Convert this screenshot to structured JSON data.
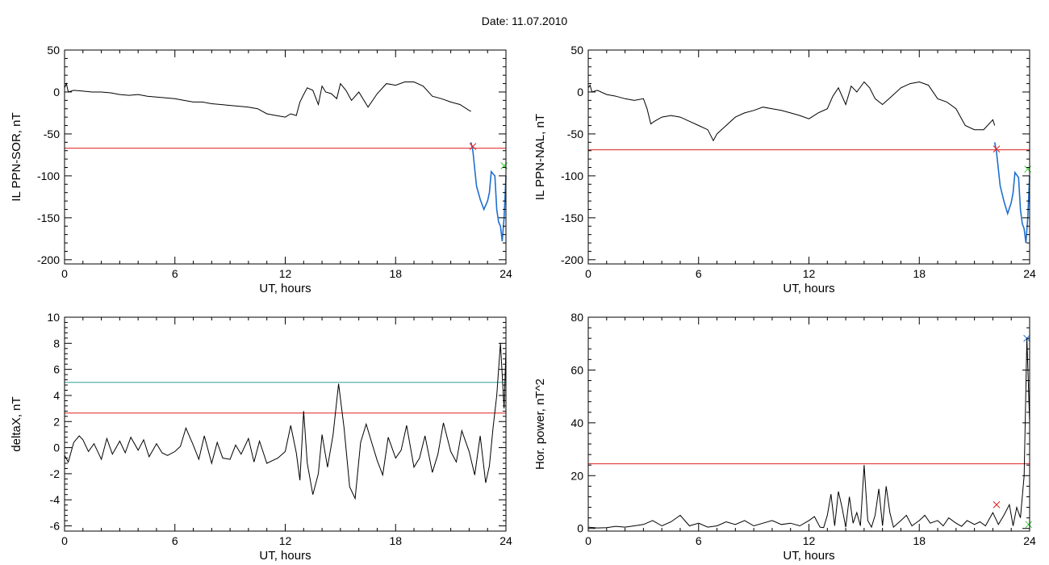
{
  "header": {
    "date_label": "Date:  11.07.2010"
  },
  "colors": {
    "threshold_red": "#e02020",
    "threshold_teal": "#2aa198",
    "series_black": "#000000",
    "series_blue": "#1f6fd0",
    "marker_green": "#33cc33"
  },
  "chart_data": [
    {
      "type": "line",
      "xlabel": "UT, hours",
      "ylabel": "IL PPN-SOR, nT",
      "xlim": [
        0,
        24
      ],
      "ylim": [
        -205,
        50
      ],
      "xticks": [
        0,
        6,
        12,
        18,
        24
      ],
      "yticks": [
        50,
        0,
        -50,
        -100,
        -150,
        -200
      ],
      "thresholds": [
        {
          "y": -67,
          "color": "#e02020"
        }
      ],
      "markers": [
        {
          "x": 22.2,
          "y": -65,
          "shape": "x",
          "color": "#e02020"
        },
        {
          "x": 23.9,
          "y": -88,
          "shape": "x",
          "color": "#33cc33"
        }
      ],
      "series": [
        {
          "color": "#000000",
          "x": [
            0,
            0.1,
            0.2,
            0.5,
            1,
            1.5,
            2,
            2.5,
            3,
            3.5,
            4,
            4.5,
            5,
            5.5,
            6,
            6.5,
            7,
            7.5,
            8,
            8.5,
            9,
            9.5,
            10,
            10.5,
            11,
            11.5,
            12,
            12.3,
            12.6,
            12.8,
            13,
            13.2,
            13.5,
            13.8,
            14,
            14.2,
            14.5,
            14.8,
            15,
            15.3,
            15.6,
            16,
            16.5,
            17,
            17.5,
            18,
            18.5,
            19,
            19.5,
            20,
            20.5,
            21,
            21.5,
            22,
            22.1
          ],
          "y": [
            5,
            10,
            0,
            2,
            1,
            0,
            0,
            -1,
            -3,
            -4,
            -3,
            -5,
            -6,
            -7,
            -8,
            -10,
            -12,
            -12,
            -14,
            -15,
            -16,
            -17,
            -18,
            -20,
            -26,
            -28,
            -30,
            -26,
            -28,
            -12,
            -3,
            5,
            2,
            -15,
            7,
            0,
            -2,
            -8,
            10,
            2,
            -10,
            0,
            -18,
            -2,
            10,
            8,
            12,
            12,
            7,
            -5,
            -8,
            -12,
            -15,
            -22,
            -23
          ]
        },
        {
          "color": "#1f6fd0",
          "x": [
            22.1,
            22.2,
            22.4,
            22.6,
            22.8,
            23.0,
            23.1,
            23.2,
            23.4,
            23.5,
            23.6,
            23.7,
            23.8,
            23.9,
            24.0
          ],
          "y": [
            -60,
            -70,
            -112,
            -128,
            -140,
            -130,
            -120,
            -95,
            -100,
            -140,
            -155,
            -160,
            -178,
            -150,
            -100
          ]
        }
      ]
    },
    {
      "type": "line",
      "xlabel": "UT, hours",
      "ylabel": "IL PPN-NAL, nT",
      "xlim": [
        0,
        24
      ],
      "ylim": [
        -205,
        50
      ],
      "xticks": [
        0,
        6,
        12,
        18,
        24
      ],
      "yticks": [
        50,
        0,
        -50,
        -100,
        -150,
        -200
      ],
      "thresholds": [
        {
          "y": -69,
          "color": "#e02020"
        }
      ],
      "markers": [
        {
          "x": 22.2,
          "y": -68,
          "shape": "x",
          "color": "#e02020"
        },
        {
          "x": 23.9,
          "y": -92,
          "shape": "x",
          "color": "#33cc33"
        }
      ],
      "series": [
        {
          "color": "#000000",
          "x": [
            0,
            0.1,
            0.2,
            0.5,
            1,
            1.5,
            2,
            2.5,
            3,
            3.2,
            3.4,
            3.6,
            4,
            4.5,
            5,
            5.5,
            6,
            6.5,
            6.8,
            7,
            7.5,
            8,
            8.5,
            9,
            9.5,
            10,
            10.5,
            11,
            11.5,
            12,
            12.5,
            13,
            13.3,
            13.6,
            14,
            14.3,
            14.6,
            15,
            15.3,
            15.6,
            16,
            16.5,
            17,
            17.5,
            18,
            18.5,
            19,
            19.5,
            20,
            20.5,
            21,
            21.5,
            22,
            22.1
          ],
          "y": [
            5,
            8,
            0,
            2,
            -3,
            -5,
            -8,
            -10,
            -8,
            -20,
            -38,
            -35,
            -30,
            -28,
            -30,
            -35,
            -40,
            -45,
            -58,
            -50,
            -40,
            -30,
            -25,
            -22,
            -18,
            -20,
            -22,
            -25,
            -28,
            -32,
            -25,
            -20,
            -5,
            5,
            -15,
            7,
            0,
            12,
            5,
            -8,
            -15,
            -5,
            5,
            10,
            12,
            8,
            -8,
            -12,
            -20,
            -40,
            -45,
            -45,
            -33,
            -40
          ]
        },
        {
          "color": "#1f6fd0",
          "x": [
            22.1,
            22.2,
            22.4,
            22.6,
            22.8,
            23.0,
            23.1,
            23.2,
            23.4,
            23.5,
            23.6,
            23.7,
            23.8,
            23.9,
            24.0
          ],
          "y": [
            -60,
            -72,
            -112,
            -130,
            -145,
            -132,
            -120,
            -96,
            -102,
            -140,
            -157,
            -163,
            -180,
            -150,
            -100
          ]
        }
      ]
    },
    {
      "type": "line",
      "xlabel": "UT, hours",
      "ylabel": "deltaX, nT",
      "xlim": [
        0,
        24
      ],
      "ylim": [
        -6.4,
        10
      ],
      "xticks": [
        0,
        6,
        12,
        18,
        24
      ],
      "yticks": [
        10,
        8,
        6,
        4,
        2,
        0,
        -2,
        -4,
        -6
      ],
      "thresholds": [
        {
          "y": 5,
          "color": "#2aa198"
        },
        {
          "y": 2.65,
          "color": "#e02020"
        }
      ],
      "markers": [],
      "series": [
        {
          "color": "#000000",
          "x": [
            0,
            0.2,
            0.5,
            0.8,
            1,
            1.3,
            1.6,
            2,
            2.3,
            2.6,
            3,
            3.3,
            3.6,
            4,
            4.3,
            4.6,
            5,
            5.3,
            5.6,
            6,
            6.3,
            6.6,
            7,
            7.3,
            7.6,
            8,
            8.3,
            8.6,
            9,
            9.3,
            9.6,
            10,
            10.3,
            10.6,
            11,
            11.3,
            11.6,
            12,
            12.3,
            12.6,
            12.8,
            13,
            13.2,
            13.5,
            13.8,
            14,
            14.3,
            14.6,
            14.9,
            15.2,
            15.5,
            15.8,
            16.1,
            16.4,
            16.7,
            17,
            17.3,
            17.6,
            18,
            18.3,
            18.6,
            19,
            19.3,
            19.6,
            20,
            20.3,
            20.6,
            21,
            21.3,
            21.6,
            22,
            22.3,
            22.6,
            22.9,
            23.1,
            23.3,
            23.5,
            23.7,
            23.9,
            24
          ],
          "y": [
            -0.6,
            -1.1,
            0.4,
            0.9,
            0.6,
            -0.3,
            0.3,
            -0.9,
            0.7,
            -0.5,
            0.5,
            -0.4,
            0.8,
            -0.2,
            0.6,
            -0.7,
            0.3,
            -0.4,
            -0.6,
            -0.3,
            0.1,
            1.5,
            0.2,
            -0.9,
            0.9,
            -1.2,
            0.4,
            -0.8,
            -0.9,
            0.2,
            -0.5,
            0.7,
            -1.1,
            0.5,
            -1.2,
            -1.0,
            -0.8,
            -0.3,
            1.7,
            -0.4,
            -2.5,
            2.8,
            -1.2,
            -3.6,
            -2.0,
            1.0,
            -1.5,
            1.0,
            4.9,
            1.5,
            -3.0,
            -3.9,
            0.4,
            1.8,
            0.4,
            -1.0,
            -2.1,
            0.8,
            -0.8,
            -0.2,
            1.7,
            -1.5,
            -0.8,
            0.9,
            -1.9,
            -0.5,
            1.9,
            -0.3,
            -1.1,
            1.3,
            -0.3,
            -2.1,
            0.9,
            -2.7,
            -1.4,
            1.5,
            4.0,
            8.0,
            3.0,
            7.5
          ]
        }
      ]
    },
    {
      "type": "line",
      "xlabel": "UT, hours",
      "ylabel": "Hor. power, nT^2",
      "xlim": [
        0,
        24
      ],
      "ylim": [
        -1,
        80
      ],
      "xticks": [
        0,
        6,
        12,
        18,
        24
      ],
      "yticks": [
        80,
        60,
        40,
        20,
        0
      ],
      "thresholds": [
        {
          "y": 24.5,
          "color": "#e02020"
        }
      ],
      "markers": [
        {
          "x": 22.2,
          "y": 9,
          "shape": "x",
          "color": "#e02020"
        },
        {
          "x": 23.85,
          "y": 72,
          "shape": "x",
          "color": "#1f6fd0"
        },
        {
          "x": 23.95,
          "y": 1.5,
          "shape": "x",
          "color": "#33cc33"
        }
      ],
      "series": [
        {
          "color": "#000000",
          "x": [
            0,
            0.5,
            1,
            1.5,
            2,
            2.5,
            3,
            3.5,
            4,
            4.5,
            5,
            5.5,
            6,
            6.5,
            7,
            7.5,
            8,
            8.5,
            9,
            9.5,
            10,
            10.5,
            11,
            11.5,
            12,
            12.3,
            12.6,
            12.8,
            13,
            13.2,
            13.4,
            13.6,
            13.8,
            14,
            14.2,
            14.4,
            14.6,
            14.8,
            15,
            15.2,
            15.4,
            15.6,
            15.8,
            16,
            16.2,
            16.4,
            16.6,
            17,
            17.3,
            17.6,
            18,
            18.3,
            18.6,
            19,
            19.3,
            19.6,
            20,
            20.3,
            20.6,
            21,
            21.3,
            21.6,
            22,
            22.3,
            22.6,
            22.9,
            23.1,
            23.3,
            23.5,
            23.7,
            23.85,
            24
          ],
          "y": [
            0.5,
            0.2,
            0.3,
            0.8,
            0.5,
            1.0,
            1.5,
            3.0,
            1.0,
            2.5,
            5.0,
            1.0,
            2.0,
            0.5,
            1.0,
            2.5,
            1.5,
            3.0,
            1.0,
            2.0,
            3.0,
            1.5,
            2.0,
            1.0,
            3.0,
            4.5,
            0.5,
            0.3,
            5.0,
            13.0,
            1.0,
            14.0,
            8.0,
            0.5,
            12.0,
            2.0,
            6.0,
            1.0,
            24.0,
            3.0,
            0.5,
            5.0,
            15.0,
            1.0,
            16.0,
            6.0,
            0.5,
            3.0,
            5.0,
            1.0,
            3.0,
            5.0,
            2.0,
            3.0,
            1.0,
            4.0,
            2.0,
            0.8,
            3.0,
            1.5,
            2.5,
            1.0,
            6.0,
            1.5,
            5.0,
            9.0,
            1.0,
            8.0,
            4.0,
            20.0,
            72.0,
            40.0
          ]
        }
      ]
    }
  ]
}
